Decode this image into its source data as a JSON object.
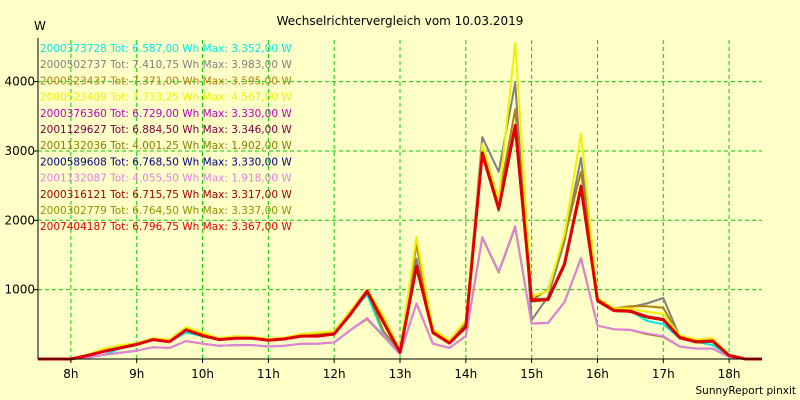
{
  "chart_data": {
    "type": "line",
    "title": "Wechselrichtervergleich vom 10.03.2019",
    "ylabel": "W",
    "xlabel": "",
    "credit": "SunnyReport pinxit",
    "x_start": "07:30",
    "x_end": "18:30",
    "x_ticks": [
      "8h",
      "9h",
      "10h",
      "11h",
      "12h",
      "13h",
      "14h",
      "15h",
      "16h",
      "17h",
      "18h"
    ],
    "ylim": [
      0,
      4600
    ],
    "y_ticks": [
      0,
      1000,
      2000,
      3000,
      4000
    ],
    "y_tick_labels": [
      "1000",
      "2000",
      "3000",
      "4000"
    ],
    "grid": true,
    "legend_position": "top-left",
    "colors": {
      "background": "#ffffc8",
      "grid": "#00cc00",
      "axis": "#000000"
    },
    "x": [
      "07:30",
      "07:45",
      "08:00",
      "08:15",
      "08:30",
      "08:45",
      "09:00",
      "09:15",
      "09:30",
      "09:45",
      "10:00",
      "10:15",
      "10:30",
      "10:45",
      "11:00",
      "11:15",
      "11:30",
      "11:45",
      "12:00",
      "12:15",
      "12:30",
      "12:45",
      "13:00",
      "13:15",
      "13:30",
      "13:45",
      "14:00",
      "14:15",
      "14:30",
      "14:45",
      "15:00",
      "15:15",
      "15:30",
      "15:45",
      "16:00",
      "16:15",
      "16:30",
      "16:45",
      "17:00",
      "17:15",
      "17:30",
      "17:45",
      "18:00",
      "18:15",
      "18:30"
    ],
    "series": [
      {
        "name": "2000373728 Tot: 6.587,00 Wh Max: 3.352,00 W",
        "color": "#00e8e8",
        "values": [
          0,
          0,
          0,
          20,
          60,
          150,
          200,
          280,
          250,
          380,
          330,
          280,
          300,
          300,
          270,
          280,
          330,
          330,
          350,
          650,
          930,
          350,
          100,
          1320,
          380,
          230,
          450,
          2950,
          2150,
          3350,
          870,
          870,
          1350,
          2440,
          850,
          700,
          700,
          550,
          500,
          300,
          250,
          200,
          50,
          0,
          0
        ]
      },
      {
        "name": "2000502737 Tot: 7.410,75 Wh Max: 3.983,00 W",
        "color": "#808080",
        "values": [
          0,
          0,
          0,
          50,
          110,
          160,
          210,
          280,
          260,
          430,
          350,
          290,
          320,
          310,
          280,
          300,
          350,
          360,
          380,
          700,
          960,
          600,
          120,
          1450,
          380,
          250,
          500,
          3200,
          2700,
          3980,
          560,
          900,
          1700,
          2900,
          850,
          700,
          750,
          800,
          880,
          320,
          270,
          280,
          60,
          0,
          0
        ]
      },
      {
        "name": "2000523437 Tot: 7.371,00 Wh Max: 3.595,00 W",
        "color": "#b08010",
        "values": [
          0,
          0,
          0,
          50,
          120,
          170,
          220,
          300,
          270,
          440,
          360,
          290,
          320,
          310,
          280,
          300,
          340,
          360,
          390,
          660,
          990,
          400,
          120,
          1650,
          400,
          260,
          540,
          3000,
          2300,
          3600,
          850,
          1000,
          1750,
          2700,
          850,
          730,
          760,
          760,
          740,
          320,
          270,
          290,
          60,
          0,
          0
        ]
      },
      {
        "name": "2000523409 Tot: 7.733,25 Wh Max: 4.567,00 W",
        "color": "#f0f000",
        "values": [
          0,
          0,
          0,
          60,
          150,
          200,
          230,
          300,
          280,
          460,
          380,
          300,
          330,
          320,
          290,
          310,
          360,
          380,
          400,
          700,
          1000,
          620,
          130,
          1760,
          430,
          270,
          560,
          3100,
          2300,
          4560,
          900,
          980,
          1800,
          3250,
          880,
          730,
          730,
          680,
          650,
          340,
          280,
          300,
          60,
          0,
          0
        ]
      },
      {
        "name": "2000376360 Tot: 6.729,00 Wh Max: 3.330,00 W",
        "color": "#c000c0",
        "values": [
          0,
          0,
          0,
          50,
          110,
          160,
          210,
          280,
          250,
          420,
          330,
          280,
          300,
          300,
          270,
          290,
          330,
          330,
          360,
          640,
          970,
          520,
          100,
          1320,
          380,
          230,
          450,
          2950,
          2150,
          3330,
          840,
          850,
          1350,
          2460,
          840,
          700,
          680,
          600,
          560,
          300,
          240,
          250,
          50,
          0,
          0
        ]
      },
      {
        "name": "2001129627 Tot: 6.884,50 Wh Max: 3.346,00 W",
        "color": "#800040",
        "values": [
          0,
          0,
          0,
          50,
          110,
          160,
          210,
          280,
          250,
          420,
          330,
          280,
          300,
          300,
          270,
          290,
          330,
          330,
          360,
          640,
          970,
          520,
          100,
          1330,
          380,
          230,
          460,
          2970,
          2170,
          3346,
          840,
          860,
          1380,
          2500,
          840,
          700,
          680,
          600,
          560,
          300,
          240,
          250,
          50,
          0,
          0
        ]
      },
      {
        "name": "2001132036 Tot: 4.001,25 Wh Max: 1.902,00 W",
        "color": "#808000",
        "values": [
          0,
          0,
          0,
          20,
          60,
          90,
          120,
          170,
          160,
          260,
          220,
          190,
          200,
          200,
          180,
          190,
          220,
          220,
          240,
          420,
          580,
          330,
          70,
          800,
          220,
          160,
          330,
          1750,
          1250,
          1900,
          510,
          520,
          820,
          1450,
          480,
          430,
          420,
          360,
          320,
          180,
          150,
          150,
          30,
          0,
          0
        ]
      },
      {
        "name": "2000589608 Tot: 6.768,50 Wh Max: 3.330,00 W",
        "color": "#000080",
        "values": [
          0,
          0,
          0,
          50,
          110,
          160,
          210,
          280,
          250,
          420,
          330,
          280,
          300,
          300,
          270,
          290,
          330,
          330,
          360,
          640,
          970,
          520,
          100,
          1320,
          380,
          230,
          450,
          2950,
          2150,
          3330,
          840,
          850,
          1360,
          2460,
          840,
          700,
          680,
          600,
          560,
          300,
          240,
          250,
          50,
          0,
          0
        ]
      },
      {
        "name": "2001132087 Tot: 4.055,50 Wh Max: 1.918,00 W",
        "color": "#e080e0",
        "values": [
          0,
          0,
          0,
          20,
          60,
          90,
          120,
          170,
          160,
          260,
          220,
          190,
          200,
          200,
          180,
          190,
          220,
          220,
          240,
          420,
          590,
          340,
          70,
          800,
          220,
          160,
          330,
          1760,
          1260,
          1918,
          510,
          520,
          820,
          1460,
          480,
          430,
          420,
          370,
          330,
          180,
          150,
          150,
          30,
          0,
          0
        ]
      },
      {
        "name": "2000316121 Tot: 6.715,75 Wh Max: 3.317,00 W",
        "color": "#a00000",
        "values": [
          0,
          0,
          0,
          50,
          110,
          160,
          210,
          280,
          250,
          420,
          330,
          280,
          300,
          300,
          270,
          290,
          330,
          330,
          360,
          640,
          960,
          520,
          100,
          1310,
          370,
          230,
          450,
          2940,
          2140,
          3317,
          830,
          850,
          1350,
          2450,
          830,
          690,
          680,
          600,
          560,
          300,
          240,
          250,
          50,
          0,
          0
        ]
      },
      {
        "name": "2000302779 Tot: 6.764,50 Wh Max: 3.337,00 W",
        "color": "#909000",
        "values": [
          0,
          0,
          0,
          50,
          110,
          160,
          210,
          280,
          250,
          420,
          330,
          280,
          300,
          300,
          270,
          290,
          330,
          330,
          360,
          640,
          970,
          520,
          100,
          1320,
          380,
          230,
          450,
          2950,
          2150,
          3337,
          840,
          850,
          1360,
          2460,
          840,
          700,
          680,
          600,
          560,
          300,
          240,
          250,
          50,
          0,
          0
        ]
      },
      {
        "name": "2007404187 Tot: 6.796,75 Wh Max: 3.367,00 W",
        "color": "#e00000",
        "values": [
          0,
          0,
          0,
          50,
          110,
          160,
          210,
          280,
          250,
          420,
          340,
          280,
          300,
          300,
          270,
          290,
          330,
          330,
          360,
          650,
          980,
          530,
          100,
          1340,
          380,
          230,
          460,
          2970,
          2170,
          3367,
          850,
          860,
          1370,
          2480,
          850,
          700,
          690,
          610,
          570,
          310,
          250,
          260,
          50,
          0,
          0
        ]
      }
    ]
  }
}
